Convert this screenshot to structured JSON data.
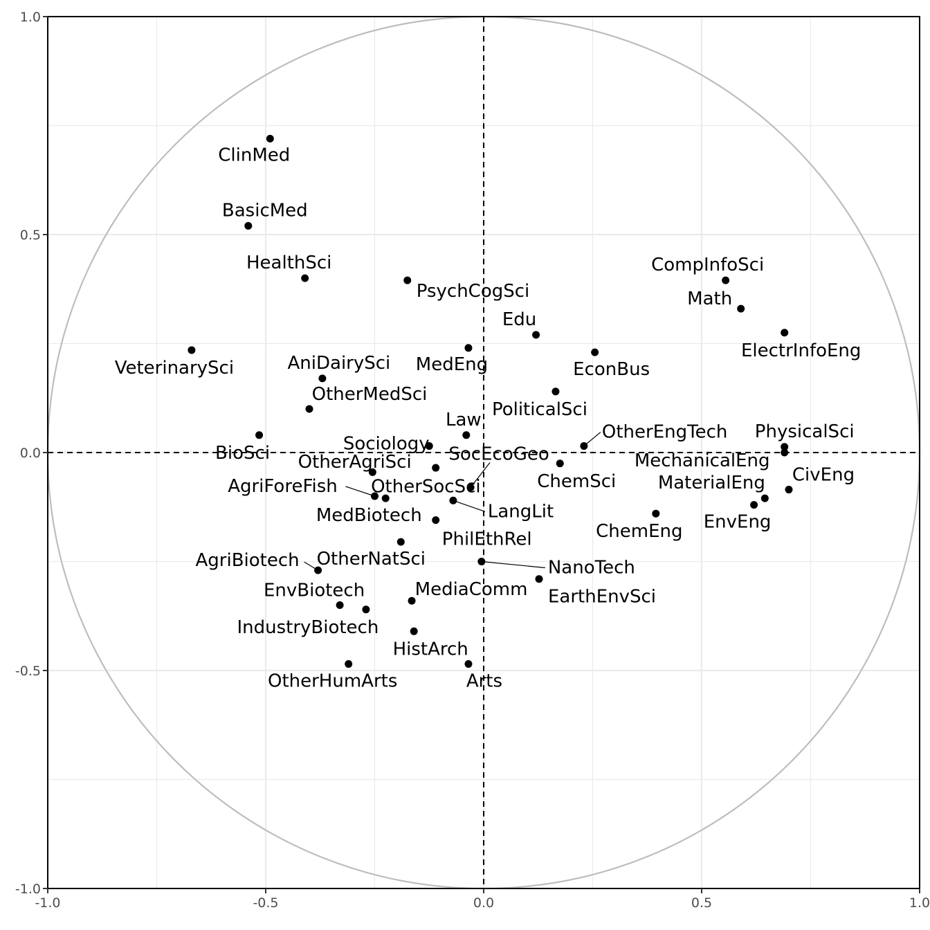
{
  "chart_data": {
    "type": "scatter",
    "title": "",
    "xlabel": "",
    "ylabel": "",
    "xlim": [
      -1.0,
      1.0
    ],
    "ylim": [
      -1.0,
      1.0
    ],
    "grid": true,
    "reference_lines": {
      "x": 0,
      "y": 0,
      "style": "dashed"
    },
    "unit_circle": true,
    "x_ticks": [
      "-1.0",
      "-0.5",
      "0.0",
      "0.5",
      "1.0"
    ],
    "y_ticks": [
      "-1.0",
      "-0.5",
      "0.0",
      "0.5",
      "1.0"
    ],
    "points": [
      {
        "name": "ClinMed",
        "x": -0.49,
        "y": 0.72
      },
      {
        "name": "BasicMed",
        "x": -0.54,
        "y": 0.52
      },
      {
        "name": "HealthSci",
        "x": -0.41,
        "y": 0.4
      },
      {
        "name": "PsychCogSci",
        "x": -0.175,
        "y": 0.395
      },
      {
        "name": "CompInfoSci",
        "x": 0.555,
        "y": 0.395
      },
      {
        "name": "Math",
        "x": 0.59,
        "y": 0.33
      },
      {
        "name": "ElectrInfoEng",
        "x": 0.69,
        "y": 0.275
      },
      {
        "name": "Edu",
        "x": 0.12,
        "y": 0.27
      },
      {
        "name": "VeterinarySci",
        "x": -0.67,
        "y": 0.235
      },
      {
        "name": "MedEng",
        "x": -0.035,
        "y": 0.24
      },
      {
        "name": "EconBus",
        "x": 0.255,
        "y": 0.23
      },
      {
        "name": "AniDairySci",
        "x": -0.37,
        "y": 0.17
      },
      {
        "name": "PoliticalSci",
        "x": 0.165,
        "y": 0.14
      },
      {
        "name": "OtherMedSci",
        "x": -0.4,
        "y": 0.1
      },
      {
        "name": "Law",
        "x": -0.04,
        "y": 0.04
      },
      {
        "name": "BioSci",
        "x": -0.515,
        "y": 0.04
      },
      {
        "name": "Sociology",
        "x": -0.125,
        "y": 0.015
      },
      {
        "name": "OtherEngTech",
        "x": 0.23,
        "y": 0.015
      },
      {
        "name": "PhysicalSci",
        "x": 0.69,
        "y": 0.013
      },
      {
        "name": "MechanicalEng",
        "x": 0.69,
        "y": 0.0
      },
      {
        "name": "OtherAgriSci",
        "x": -0.11,
        "y": -0.035
      },
      {
        "name": "SocEcoGeo",
        "x": -0.03,
        "y": -0.08
      },
      {
        "name": "ChemSci",
        "x": 0.175,
        "y": -0.025
      },
      {
        "name": "AgriForeFish",
        "x": -0.25,
        "y": -0.1
      },
      {
        "name": "OtherSocSci",
        "x": -0.255,
        "y": -0.045
      },
      {
        "name": "MedBiotech",
        "x": -0.225,
        "y": -0.105
      },
      {
        "name": "LangLit",
        "x": -0.07,
        "y": -0.11
      },
      {
        "name": "CivEng",
        "x": 0.7,
        "y": -0.085
      },
      {
        "name": "MaterialEng",
        "x": 0.645,
        "y": -0.105
      },
      {
        "name": "EnvEng",
        "x": 0.62,
        "y": -0.12
      },
      {
        "name": "ChemEng",
        "x": 0.395,
        "y": -0.14
      },
      {
        "name": "PhilEthRel",
        "x": -0.11,
        "y": -0.155
      },
      {
        "name": "OtherNatSci",
        "x": -0.19,
        "y": -0.205
      },
      {
        "name": "NanoTech",
        "x": -0.005,
        "y": -0.25
      },
      {
        "name": "AgriBiotech",
        "x": -0.38,
        "y": -0.27
      },
      {
        "name": "EarthEnvSci",
        "x": 0.127,
        "y": -0.29
      },
      {
        "name": "MediaComm",
        "x": -0.165,
        "y": -0.34
      },
      {
        "name": "EnvBiotech",
        "x": -0.33,
        "y": -0.35
      },
      {
        "name": "IndustryBiotech",
        "x": -0.27,
        "y": -0.36
      },
      {
        "name": "HistArch",
        "x": -0.16,
        "y": -0.41
      },
      {
        "name": "OtherHumArts",
        "x": -0.31,
        "y": -0.485
      },
      {
        "name": "Arts",
        "x": -0.035,
        "y": -0.485
      }
    ]
  }
}
